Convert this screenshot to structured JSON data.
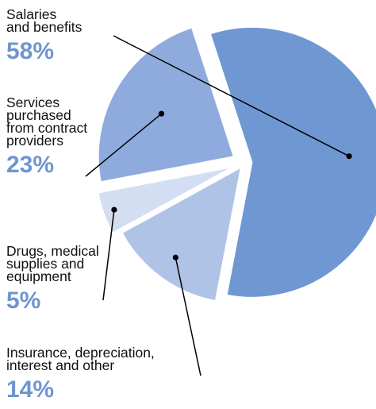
{
  "chart_data": {
    "type": "pie",
    "title": "",
    "slices": [
      {
        "label_lines": [
          "Salaries",
          "and benefits"
        ],
        "value": 58,
        "value_label": "58%",
        "color": "#6f98d2"
      },
      {
        "label_lines": [
          "Insurance, depreciation,",
          "interest and other"
        ],
        "value": 14,
        "value_label": "14%",
        "color": "#aec3e6"
      },
      {
        "label_lines": [
          "Drugs, medical",
          "supplies and",
          "equipment"
        ],
        "value": 5,
        "value_label": "5%",
        "color": "#d4def2"
      },
      {
        "label_lines": [
          "Services",
          "purchased",
          "from contract",
          "providers"
        ],
        "value": 23,
        "value_label": "23%",
        "color": "#8fabdd"
      }
    ],
    "legend": "none",
    "value_label_color": "#6f96cf"
  }
}
